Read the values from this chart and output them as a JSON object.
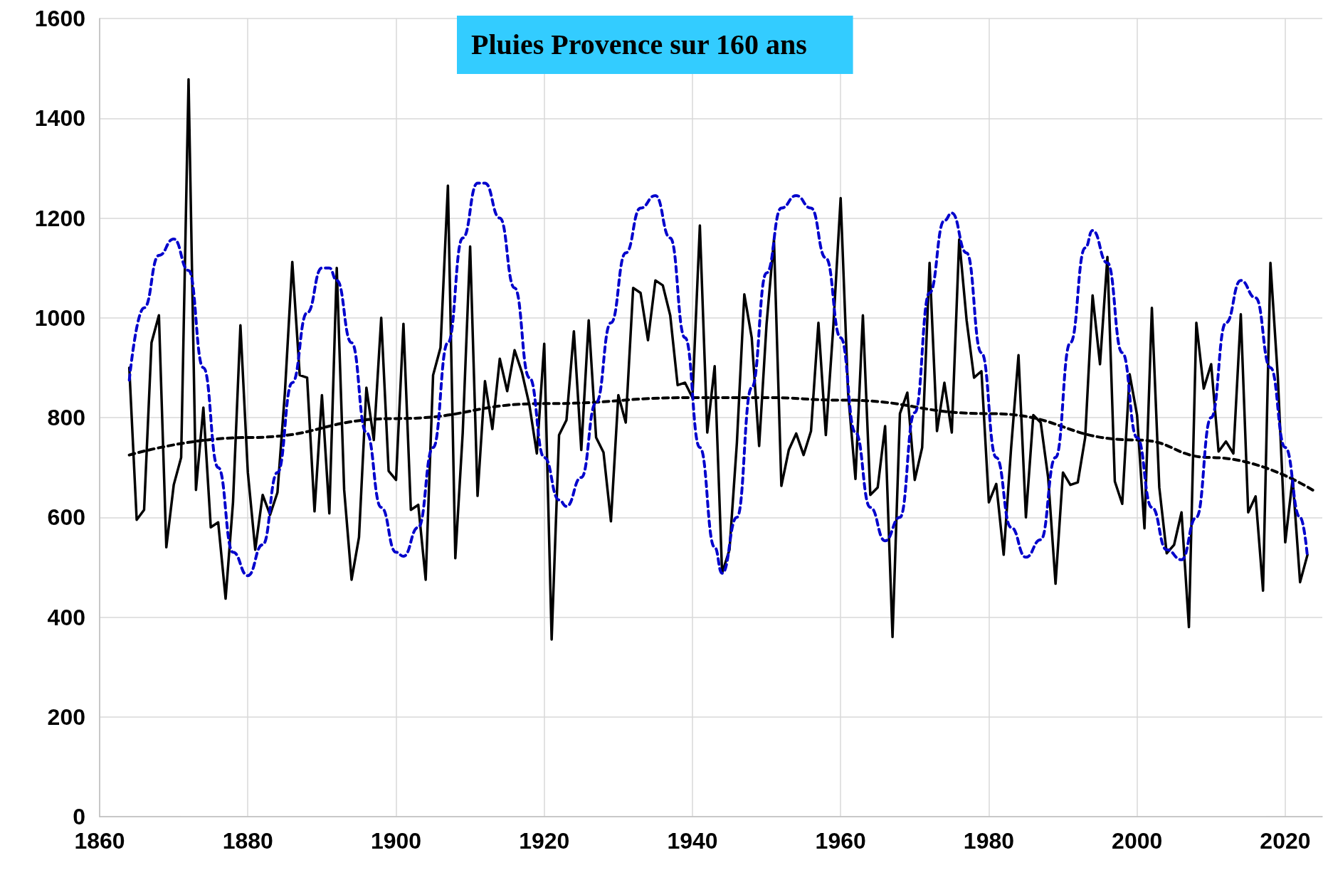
{
  "chart_data": {
    "type": "line",
    "title": "Pluies Provence sur 160 ans",
    "x": [
      1864,
      1865,
      1866,
      1867,
      1868,
      1869,
      1870,
      1871,
      1872,
      1873,
      1874,
      1875,
      1876,
      1877,
      1878,
      1879,
      1880,
      1881,
      1882,
      1883,
      1884,
      1885,
      1886,
      1887,
      1888,
      1889,
      1890,
      1891,
      1892,
      1893,
      1894,
      1895,
      1896,
      1897,
      1898,
      1899,
      1900,
      1901,
      1902,
      1903,
      1904,
      1905,
      1906,
      1907,
      1908,
      1909,
      1910,
      1911,
      1912,
      1913,
      1914,
      1915,
      1916,
      1917,
      1918,
      1919,
      1920,
      1921,
      1922,
      1923,
      1924,
      1925,
      1926,
      1927,
      1928,
      1929,
      1930,
      1931,
      1932,
      1933,
      1934,
      1935,
      1936,
      1937,
      1938,
      1939,
      1940,
      1941,
      1942,
      1943,
      1944,
      1945,
      1946,
      1947,
      1948,
      1949,
      1950,
      1951,
      1952,
      1953,
      1954,
      1955,
      1956,
      1957,
      1958,
      1959,
      1960,
      1961,
      1962,
      1963,
      1964,
      1965,
      1966,
      1967,
      1968,
      1969,
      1970,
      1971,
      1972,
      1973,
      1974,
      1975,
      1976,
      1977,
      1978,
      1979,
      1980,
      1981,
      1982,
      1983,
      1984,
      1985,
      1986,
      1987,
      1988,
      1989,
      1990,
      1991,
      1992,
      1993,
      1994,
      1995,
      1996,
      1997,
      1998,
      1999,
      2000,
      2001,
      2002,
      2003,
      2004,
      2005,
      2006,
      2007,
      2008,
      2009,
      2010,
      2011,
      2012,
      2013,
      2014,
      2015,
      2016,
      2017,
      2018,
      2019,
      2020,
      2021,
      2022,
      2023
    ],
    "series": [
      {
        "color": "#000000",
        "line_style": "solid",
        "values": [
          900,
          595,
          615,
          950,
          1005,
          540,
          665,
          720,
          1478,
          655,
          820,
          580,
          590,
          437,
          630,
          985,
          690,
          535,
          645,
          605,
          650,
          850,
          1112,
          885,
          880,
          612,
          845,
          608,
          1100,
          655,
          475,
          560,
          860,
          755,
          1000,
          693,
          675,
          988,
          615,
          625,
          475,
          885,
          940,
          1265,
          518,
          770,
          1143,
          643,
          873,
          777,
          918,
          853,
          935,
          890,
          825,
          728,
          948,
          355,
          765,
          795,
          973,
          735,
          995,
          760,
          730,
          592,
          845,
          790,
          1060,
          1050,
          955,
          1075,
          1065,
          1005,
          865,
          870,
          840,
          1185,
          770,
          903,
          488,
          535,
          750,
          1047,
          960,
          743,
          987,
          1157,
          663,
          735,
          768,
          725,
          773,
          990,
          765,
          980,
          1240,
          850,
          677,
          1005,
          645,
          660,
          783,
          360,
          808,
          850,
          675,
          740,
          1110,
          773,
          870,
          770,
          1157,
          995,
          880,
          893,
          630,
          667,
          525,
          738,
          925,
          600,
          805,
          790,
          680,
          467,
          690,
          665,
          670,
          760,
          1045,
          907,
          1122,
          672,
          627,
          887,
          805,
          578,
          1020,
          660,
          528,
          545,
          610,
          380,
          990,
          858,
          907,
          732,
          752,
          728,
          1007,
          610,
          642,
          453,
          1110,
          880,
          550,
          678,
          470,
          525
        ]
      },
      {
        "color": "#000000",
        "line_style": "dashed",
        "x": [
          1864,
          1880,
          1900,
          1920,
          1940,
          1950,
          1960,
          1980,
          2000,
          2010,
          2024
        ],
        "values": [
          725,
          760,
          798,
          828,
          840,
          840,
          835,
          808,
          755,
          720,
          652
        ]
      },
      {
        "color": "#0000cc",
        "line_style": "dashed",
        "x": [
          1864,
          1866,
          1868,
          1870,
          1872,
          1874,
          1876,
          1878,
          1880,
          1882,
          1884,
          1886,
          1888,
          1890,
          1891,
          1892,
          1894,
          1896,
          1898,
          1900,
          1901,
          1903,
          1905,
          1907,
          1909,
          1911,
          1912,
          1914,
          1916,
          1918,
          1920,
          1922,
          1923,
          1925,
          1927,
          1929,
          1931,
          1933,
          1935,
          1937,
          1939,
          1941,
          1943,
          1944,
          1946,
          1948,
          1950,
          1952,
          1954,
          1956,
          1958,
          1960,
          1962,
          1964,
          1966,
          1968,
          1970,
          1972,
          1974,
          1975,
          1977,
          1979,
          1981,
          1983,
          1985,
          1987,
          1989,
          1991,
          1993,
          1994,
          1996,
          1998,
          2000,
          2002,
          2004,
          2006,
          2008,
          2010,
          2012,
          2014,
          2016,
          2018,
          2020,
          2022,
          2023
        ],
        "values": [
          875,
          1020,
          1125,
          1158,
          1095,
          900,
          700,
          530,
          483,
          545,
          690,
          870,
          1010,
          1100,
          1100,
          1075,
          950,
          770,
          620,
          530,
          522,
          580,
          740,
          950,
          1160,
          1270,
          1270,
          1200,
          1060,
          880,
          720,
          635,
          622,
          680,
          830,
          990,
          1130,
          1220,
          1245,
          1160,
          960,
          740,
          540,
          488,
          600,
          860,
          1090,
          1220,
          1245,
          1220,
          1120,
          960,
          770,
          620,
          553,
          600,
          810,
          1050,
          1195,
          1210,
          1130,
          930,
          720,
          580,
          520,
          555,
          720,
          950,
          1140,
          1175,
          1110,
          930,
          760,
          620,
          535,
          515,
          600,
          800,
          990,
          1075,
          1040,
          900,
          740,
          600,
          520
        ]
      }
    ],
    "xlim": [
      1860,
      2025
    ],
    "xticks": [
      1860,
      1880,
      1900,
      1920,
      1940,
      1960,
      1980,
      2000,
      2020
    ],
    "ylim": [
      0,
      1600
    ],
    "yticks": [
      0,
      200,
      400,
      600,
      800,
      1000,
      1200,
      1400,
      1600
    ],
    "grid": true,
    "marker": "none"
  }
}
